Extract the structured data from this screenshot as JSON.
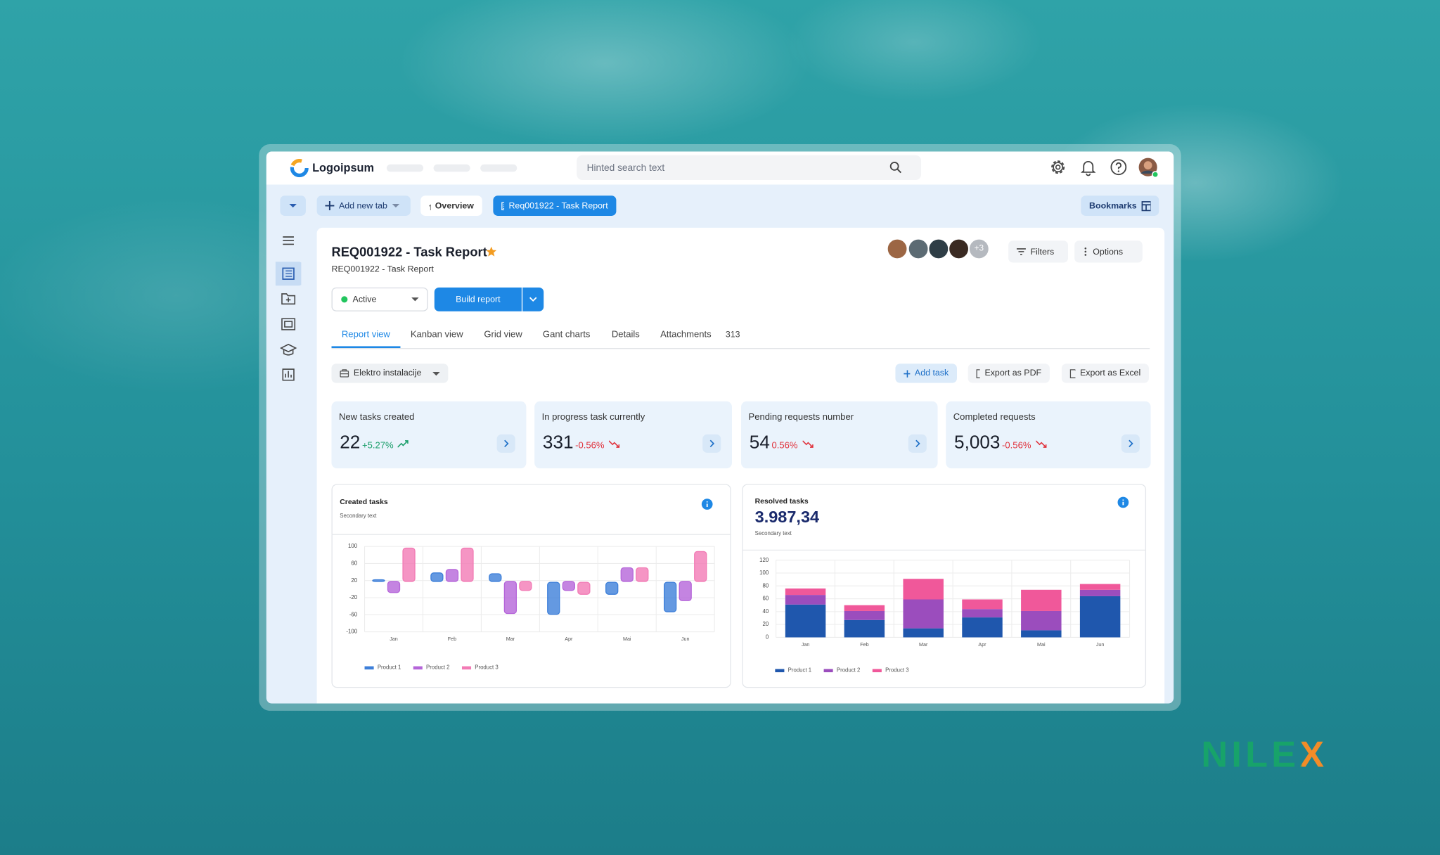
{
  "brand": "NILEX",
  "header": {
    "logo": "Logoipsum",
    "search_placeholder": "Hinted search text"
  },
  "tab_bar": {
    "add_tab": "Add new tab",
    "overview": "Overview",
    "active_tab": "Req001922 - Task Report",
    "bookmarks": "Bookmarks"
  },
  "report": {
    "title": "REQ001922 - Task Report",
    "subtitle": "REQ001922 - Task Report",
    "more_members": "+3",
    "filters": "Filters",
    "options": "Options",
    "status": "Active",
    "build_button": "Build report"
  },
  "view_tabs": [
    {
      "label": "Report view"
    },
    {
      "label": "Kanban view"
    },
    {
      "label": "Grid view"
    },
    {
      "label": "Gant charts"
    },
    {
      "label": "Details"
    },
    {
      "label": "Attachments",
      "count": "313"
    }
  ],
  "toolbar": {
    "group": "Elektro instalacije",
    "add_task": "Add task",
    "export_pdf": "Export as PDF",
    "export_excel": "Export as Excel"
  },
  "kpis": [
    {
      "label": "New tasks created",
      "value": "22",
      "change": "+5.27%",
      "trend": "up"
    },
    {
      "label": "In progress task currently",
      "value": "331",
      "change": "-0.56%",
      "trend": "down"
    },
    {
      "label": "Pending requests number",
      "value": "54",
      "change": "0.56%",
      "trend": "down"
    },
    {
      "label": "Completed requests",
      "value": "5,003",
      "change": "-0.56%",
      "trend": "down"
    }
  ],
  "chart_data": [
    {
      "type": "range-bar",
      "title": "Created tasks",
      "subtitle": "Secondary text",
      "categories": [
        "Jan",
        "Feb",
        "Mar",
        "Apr",
        "Mai",
        "Jun"
      ],
      "series": [
        {
          "name": "Product 1",
          "color": "#3d7fd9",
          "values": [
            [
              18,
              22
            ],
            [
              18,
              38
            ],
            [
              18,
              36
            ],
            [
              -59,
              16
            ],
            [
              -12,
              16
            ],
            [
              -53,
              16
            ]
          ]
        },
        {
          "name": "Product 2",
          "color": "#b565d9",
          "values": [
            [
              -8,
              18
            ],
            [
              18,
              46
            ],
            [
              -57,
              18
            ],
            [
              -3,
              18
            ],
            [
              18,
              50
            ],
            [
              -27,
              18
            ]
          ]
        },
        {
          "name": "Product 3",
          "color": "#f27bb5",
          "values": [
            [
              18,
              96
            ],
            [
              18,
              96
            ],
            [
              -3,
              18
            ],
            [
              -12,
              16
            ],
            [
              18,
              50
            ],
            [
              18,
              88
            ]
          ]
        }
      ],
      "ylim": [
        -100,
        100
      ],
      "yticks": [
        -100,
        -60,
        -20,
        20,
        60,
        100
      ],
      "grid": true,
      "legend": "bottom"
    },
    {
      "type": "stacked-bar",
      "title": "Resolved tasks",
      "headline": "3.987,34",
      "subtitle": "Secondary text",
      "categories": [
        "Jan",
        "Feb",
        "Mar",
        "Apr",
        "Mai",
        "Jun"
      ],
      "series": [
        {
          "name": "Product 1",
          "color": "#1f57ad",
          "values": [
            51,
            27,
            14,
            31,
            11,
            64
          ]
        },
        {
          "name": "Product 2",
          "color": "#9b4dbd",
          "values": [
            15,
            14,
            45,
            13,
            30,
            10
          ]
        },
        {
          "name": "Product 3",
          "color": "#f0589a",
          "values": [
            10,
            9,
            32,
            15,
            33,
            9
          ]
        }
      ],
      "ylim": [
        0,
        120
      ],
      "yticks": [
        0,
        20,
        40,
        60,
        80,
        100,
        120
      ],
      "grid": true,
      "legend": "bottom"
    }
  ]
}
